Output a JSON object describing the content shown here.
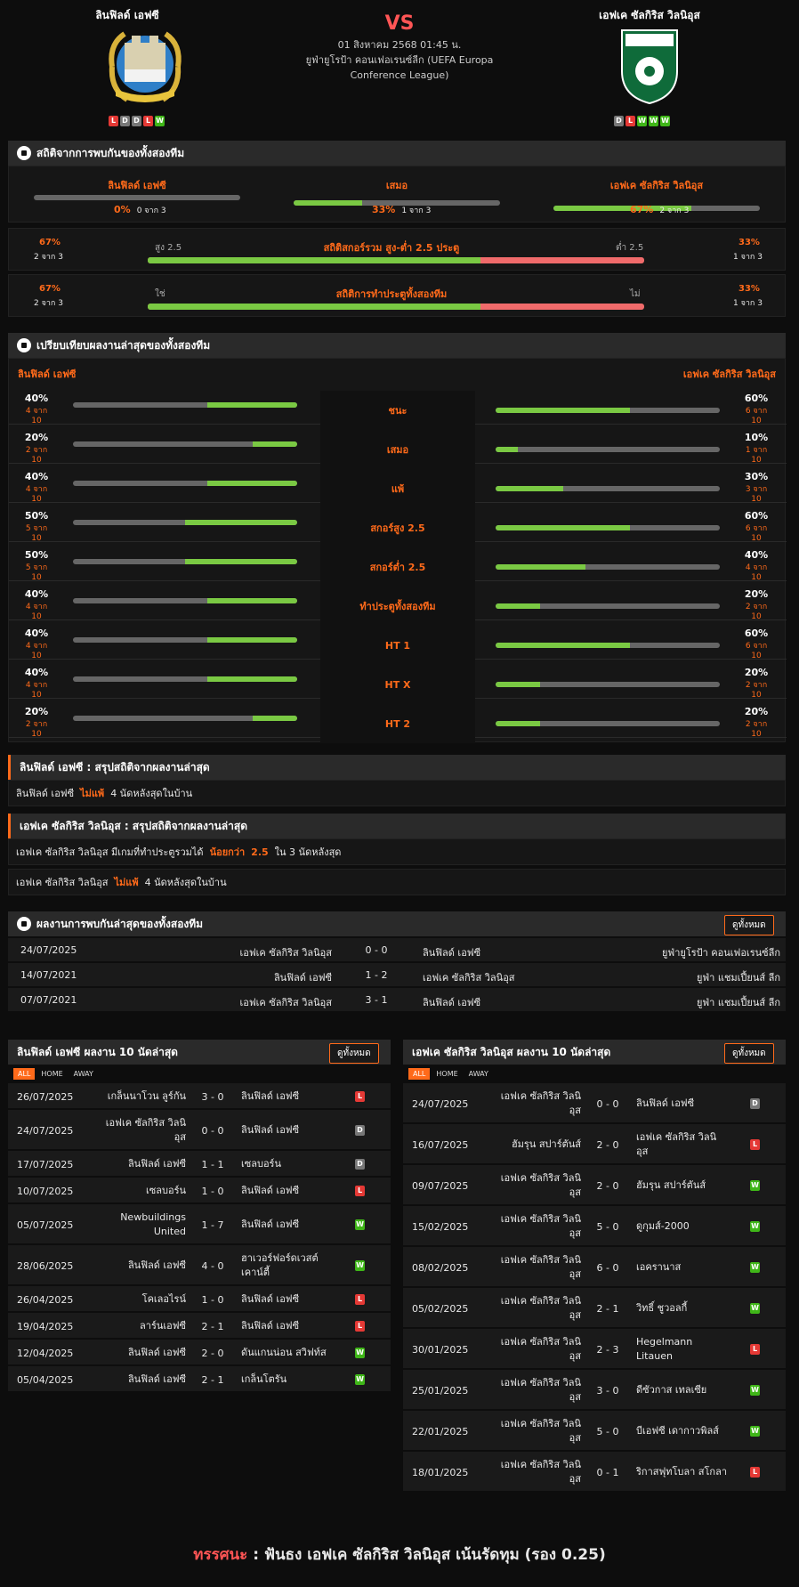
{
  "header": {
    "home_name": "ลินฟิลด์ เอฟซี",
    "away_name": "เอฟเค ซัลกิริส วิลนิอุส",
    "vs": "VS",
    "date": "01 สิงหาคม 2568 01:45 น.",
    "league_line1": "ยูฟ่ายูโรป้า คอนเฟอเรนซ์ลีก (UEFA Europa",
    "league_line2": "Conference League)",
    "home_form": [
      "L",
      "D",
      "D",
      "L",
      "W"
    ],
    "away_form": [
      "D",
      "L",
      "W",
      "W",
      "W"
    ]
  },
  "h2h_stats": {
    "title": "สถิติจากการพบกันของทั้งสองทีม",
    "home_label": "ลินฟิลด์ เอฟซี",
    "draw_label": "เสมอ",
    "away_label": "เอฟเค ซัลกิริส วิลนิอุส",
    "home_pct": "0%",
    "home_sub": "0 จาก 3",
    "home_val": 0,
    "draw_pct": "33%",
    "draw_sub": "1 จาก 3",
    "draw_val": 0.33,
    "away_pct": "67%",
    "away_sub": "2 จาก 3",
    "away_val": 0.67,
    "ou": {
      "title": "สถิติสกอร์รวม สูง-ต่ำ 2.5 ประตู",
      "left_pct": "67%",
      "left_sub": "2 จาก 3",
      "left_label": "สูง 2.5",
      "right_label": "ต่ำ 2.5",
      "right_pct": "33%",
      "right_sub": "1 จาก 3",
      "fill": 0.67
    },
    "btts": {
      "title": "สถิติการทำประตูทั้งสองทีม",
      "left_pct": "67%",
      "left_sub": "2 จาก 3",
      "left_label": "ใช่",
      "right_label": "ไม่",
      "right_pct": "33%",
      "right_sub": "1 จาก 3",
      "fill": 0.67
    }
  },
  "compare": {
    "title": "เปรียบเทียบผลงานล่าสุดของทั้งสองทีม",
    "home_label": "ลินฟิลด์ เอฟซี",
    "away_label": "เอฟเค ซัลกิริส วิลนิอุส",
    "rows": [
      {
        "label": "ชนะ",
        "hp": "40%",
        "hs": "4 จาก 10",
        "hv": 0.4,
        "ap": "60%",
        "as": "6 จาก 10",
        "av": 0.6
      },
      {
        "label": "เสมอ",
        "hp": "20%",
        "hs": "2 จาก 10",
        "hv": 0.2,
        "ap": "10%",
        "as": "1 จาก 10",
        "av": 0.1
      },
      {
        "label": "แพ้",
        "hp": "40%",
        "hs": "4 จาก 10",
        "hv": 0.4,
        "ap": "30%",
        "as": "3 จาก 10",
        "av": 0.3
      },
      {
        "label": "สกอร์สูง 2.5",
        "hp": "50%",
        "hs": "5 จาก 10",
        "hv": 0.5,
        "ap": "60%",
        "as": "6 จาก 10",
        "av": 0.6
      },
      {
        "label": "สกอร์ต่ำ 2.5",
        "hp": "50%",
        "hs": "5 จาก 10",
        "hv": 0.5,
        "ap": "40%",
        "as": "4 จาก 10",
        "av": 0.4
      },
      {
        "label": "ทำประตูทั้งสองทีม",
        "hp": "40%",
        "hs": "4 จาก 10",
        "hv": 0.4,
        "ap": "20%",
        "as": "2 จาก 10",
        "av": 0.2
      },
      {
        "label": "HT 1",
        "hp": "40%",
        "hs": "4 จาก 10",
        "hv": 0.4,
        "ap": "60%",
        "as": "6 จาก 10",
        "av": 0.6
      },
      {
        "label": "HT X",
        "hp": "40%",
        "hs": "4 จาก 10",
        "hv": 0.4,
        "ap": "20%",
        "as": "2 จาก 10",
        "av": 0.2
      },
      {
        "label": "HT 2",
        "hp": "20%",
        "hs": "2 จาก 10",
        "hv": 0.2,
        "ap": "20%",
        "as": "2 จาก 10",
        "av": 0.2
      }
    ]
  },
  "summary_home": {
    "title": "ลินฟิลด์ เอฟซี : สรุปสถิติจากผลงานล่าสุด",
    "l1_a": "ลินฟิลด์ เอฟซี",
    "l1_b": "ไม่แพ้",
    "l1_c": "4 นัดหลังสุดในบ้าน"
  },
  "summary_away": {
    "title": "เอฟเค ซัลกิริส วิลนิอุส : สรุปสถิติจากผลงานล่าสุด",
    "l1_a": "เอฟเค ซัลกิริส วิลนิอุส มีเกมที่ทำประตูรวมได้",
    "l1_b": "น้อยกว่า",
    "l1_c": "2.5",
    "l1_d": "ใน 3 นัดหลังสุด",
    "l2_a": "เอฟเค ซัลกิริส วิลนิอุส",
    "l2_b": "ไม่แพ้",
    "l2_c": "4 นัดหลังสุดในบ้าน"
  },
  "h2h_results": {
    "title": "ผลงานการพบกันล่าสุดของทั้งสองทีม",
    "view_all": "ดูทั้งหมด",
    "rows": [
      {
        "date": "24/07/2025",
        "home": "เอฟเค ซัลกิริส วิลนิอุส",
        "score": "0 - 0",
        "away": "ลินฟิลด์ เอฟซี",
        "league": "ยูฟ่ายูโรป้า คอนเฟอเรนซ์ลีก"
      },
      {
        "date": "14/07/2021",
        "home": "ลินฟิลด์ เอฟซี",
        "score": "1 - 2",
        "away": "เอฟเค ซัลกิริส วิลนิอุส",
        "league": "ยูฟ่า แชมเปี้ยนส์ ลีก"
      },
      {
        "date": "07/07/2021",
        "home": "เอฟเค ซัลกิริส วิลนิอุส",
        "score": "3 - 1",
        "away": "ลินฟิลด์ เอฟซี",
        "league": "ยูฟ่า แชมเปี้ยนส์ ลีก"
      }
    ]
  },
  "tabs": [
    "ALL",
    "HOME",
    "AWAY"
  ],
  "home_last10": {
    "title": "ลินฟิลด์ เอฟซี ผลงาน 10 นัดล่าสุด",
    "view_all": "ดูทั้งหมด",
    "rows": [
      {
        "date": "26/07/2025",
        "home": "เกล็นนาโวน ลูร์กัน",
        "score": "3 - 0",
        "away": "ลินฟิลด์ เอฟซี",
        "r": "L",
        "h": 30
      },
      {
        "date": "24/07/2025",
        "home": "เอฟเค ซัลกิริส วิลนิ\nอุส",
        "score": "0 - 0",
        "away": "ลินฟิลด์ เอฟซี",
        "r": "D",
        "h": 46
      },
      {
        "date": "17/07/2025",
        "home": "ลินฟิลด์ เอฟซี",
        "score": "1 - 1",
        "away": "เซลบอร์น",
        "r": "D",
        "h": 30
      },
      {
        "date": "10/07/2025",
        "home": "เซลบอร์น",
        "score": "1 - 0",
        "away": "ลินฟิลด์ เอฟซี",
        "r": "L",
        "h": 30
      },
      {
        "date": "05/07/2025",
        "home": "Newbuildings\nUnited",
        "score": "1 - 7",
        "away": "ลินฟิลด์ เอฟซี",
        "r": "W",
        "h": 46
      },
      {
        "date": "28/06/2025",
        "home": "ลินฟิลด์ เอฟซี",
        "score": "4 - 0",
        "away": "ฮาเวอร์ฟอร์ดเวสต์\nเคาน์ตี้",
        "r": "W",
        "h": 46
      },
      {
        "date": "26/04/2025",
        "home": "โคเลอไรน์",
        "score": "1 - 0",
        "away": "ลินฟิลด์ เอฟซี",
        "r": "L",
        "h": 30
      },
      {
        "date": "19/04/2025",
        "home": "ลาร์นเอฟซี",
        "score": "2 - 1",
        "away": "ลินฟิลด์ เอฟซี",
        "r": "L",
        "h": 30
      },
      {
        "date": "12/04/2025",
        "home": "ลินฟิลด์ เอฟซี",
        "score": "2 - 0",
        "away": "ดันแกนน่อน สวิฟท์ส",
        "r": "W",
        "h": 30
      },
      {
        "date": "05/04/2025",
        "home": "ลินฟิลด์ เอฟซี",
        "score": "2 - 1",
        "away": "เกล็นโตรัน",
        "r": "W",
        "h": 30
      }
    ]
  },
  "away_last10": {
    "title": "เอฟเค ซัลกิริส วิลนิอุส ผลงาน 10 นัดล่าสุด",
    "view_all": "ดูทั้งหมด",
    "rows": [
      {
        "date": "24/07/2025",
        "home": "เอฟเค ซัลกิริส วิลนิ\nอุส",
        "score": "0 - 0",
        "away": "ลินฟิลด์ เอฟซี",
        "r": "D"
      },
      {
        "date": "16/07/2025",
        "home": "ฮัมรุน สปาร์ตันส์",
        "score": "2 - 0",
        "away": "เอฟเค ซัลกิริส วิลนิ\nอุส",
        "r": "L"
      },
      {
        "date": "09/07/2025",
        "home": "เอฟเค ซัลกิริส วิลนิ\nอุส",
        "score": "2 - 0",
        "away": "ฮัมรุน สปาร์ตันส์",
        "r": "W"
      },
      {
        "date": "15/02/2025",
        "home": "เอฟเค ซัลกิริส วิลนิ\nอุส",
        "score": "5 - 0",
        "away": "ดูกุมส์-2000",
        "r": "W"
      },
      {
        "date": "08/02/2025",
        "home": "เอฟเค ซัลกิริส วิลนิ\nอุส",
        "score": "6 - 0",
        "away": "เอครานาส",
        "r": "W"
      },
      {
        "date": "05/02/2025",
        "home": "เอฟเค ซัลกิริส วิลนิ\nอุส",
        "score": "2 - 1",
        "away": "วิทธิ์ ชูวอลกี้",
        "r": "W"
      },
      {
        "date": "30/01/2025",
        "home": "เอฟเค ซัลกิริส วิลนิ\nอุส",
        "score": "2 - 3",
        "away": "Hegelmann\nLitauen",
        "r": "L"
      },
      {
        "date": "25/01/2025",
        "home": "เอฟเค ซัลกิริส วิลนิ\nอุส",
        "score": "3 - 0",
        "away": "ดีซัวกาส เทลเซีย",
        "r": "W"
      },
      {
        "date": "22/01/2025",
        "home": "เอฟเค ซัลกิริส วิลนิ\nอุส",
        "score": "5 - 0",
        "away": "บีเอฟซี เดากาวพิลส์",
        "r": "W"
      },
      {
        "date": "18/01/2025",
        "home": "เอฟเค ซัลกิริส วิลนิ\nอุส",
        "score": "0 - 1",
        "away": "ริกาสฟุทโบลา สโกลา",
        "r": "L"
      }
    ]
  },
  "verdict": {
    "label": "ทรรศนะ",
    "sep": ":",
    "text": "ฟันธง เอฟเค ซัลกิริส วิลนิอุส เน้นรัดทุม (รอง 0.25)"
  },
  "colors": {
    "accent": "#ff6a1a",
    "green": "#7ac943",
    "red": "#ff5555",
    "win": "#3fb618",
    "loss": "#e53935",
    "draw": "#777777"
  }
}
